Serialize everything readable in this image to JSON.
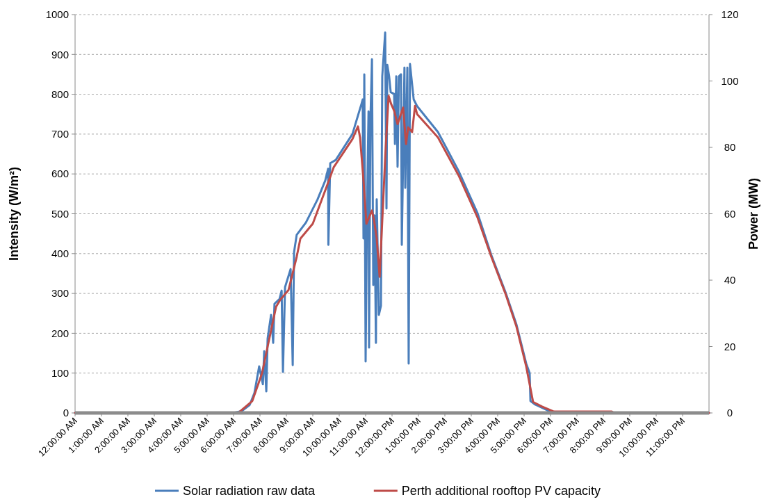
{
  "chart_data": {
    "type": "line",
    "ylabel": "Intensity (W/m²)",
    "y2label": "Power (MW)",
    "xlim": [
      0,
      24
    ],
    "xticks": [
      {
        "value": 0,
        "label": "12:00:00 AM"
      },
      {
        "value": 1,
        "label": "1:00:00 AM"
      },
      {
        "value": 2,
        "label": "2:00:00 AM"
      },
      {
        "value": 3,
        "label": "3:00:00 AM"
      },
      {
        "value": 4,
        "label": "4:00:00 AM"
      },
      {
        "value": 5,
        "label": "5:00:00 AM"
      },
      {
        "value": 6,
        "label": "6:00:00 AM"
      },
      {
        "value": 7,
        "label": "7:00:00 AM"
      },
      {
        "value": 8,
        "label": "8:00:00 AM"
      },
      {
        "value": 9,
        "label": "9:00:00 AM"
      },
      {
        "value": 10,
        "label": "10:00:00 AM"
      },
      {
        "value": 11,
        "label": "11:00:00 AM"
      },
      {
        "value": 12,
        "label": "12:00:00 PM"
      },
      {
        "value": 13,
        "label": "1:00:00 PM"
      },
      {
        "value": 14,
        "label": "2:00:00 PM"
      },
      {
        "value": 15,
        "label": "3:00:00 PM"
      },
      {
        "value": 16,
        "label": "4:00:00 PM"
      },
      {
        "value": 17,
        "label": "5:00:00 PM"
      },
      {
        "value": 18,
        "label": "6:00:00 PM"
      },
      {
        "value": 19,
        "label": "7:00:00 PM"
      },
      {
        "value": 20,
        "label": "8:00:00 PM"
      },
      {
        "value": 21,
        "label": "9:00:00 PM"
      },
      {
        "value": 22,
        "label": "10:00:00 PM"
      },
      {
        "value": 23,
        "label": "11:00:00 PM"
      }
    ],
    "ylim": [
      0,
      1000
    ],
    "yticks": [
      0,
      100,
      200,
      300,
      400,
      500,
      600,
      700,
      800,
      900,
      1000
    ],
    "y2lim": [
      0,
      120
    ],
    "y2ticks": [
      0,
      20,
      40,
      60,
      80,
      100,
      120
    ],
    "grid": "y",
    "legend": "bottom",
    "marker": "none",
    "line_style": "solid",
    "series": [
      {
        "name": "Solar radiation raw data",
        "color": "#4a7ebb",
        "x": [
          0,
          6.0,
          6.32,
          6.61,
          6.79,
          6.97,
          7.11,
          7.16,
          7.24,
          7.29,
          7.42,
          7.5,
          7.55,
          7.74,
          7.82,
          7.87,
          7.95,
          8.16,
          8.24,
          8.29,
          8.39,
          8.74,
          9.18,
          9.47,
          9.58,
          9.59,
          9.66,
          9.87,
          10.5,
          10.84,
          10.89,
          10.92,
          10.95,
          11.0,
          11.05,
          11.11,
          11.13,
          11.18,
          11.24,
          11.29,
          11.34,
          11.39,
          11.42,
          11.5,
          11.58,
          11.63,
          11.74,
          11.79,
          11.82,
          11.89,
          11.95,
          12.08,
          12.11,
          12.16,
          12.21,
          12.26,
          12.34,
          12.37,
          12.47,
          12.5,
          12.58,
          12.63,
          12.68,
          12.82,
          12.95,
          13.74,
          14.53,
          15.24,
          15.76,
          16.29,
          16.71,
          17.08,
          17.21,
          17.24,
          17.42,
          17.87,
          18.13,
          24
        ],
        "values": [
          0,
          0,
          5,
          20,
          50,
          117,
          72,
          155,
          54,
          187,
          246,
          176,
          274,
          286,
          307,
          103,
          316,
          361,
          120,
          403,
          447,
          478,
          536,
          583,
          613,
          422,
          627,
          635,
          700,
          775,
          787,
          438,
          850,
          129,
          496,
          757,
          164,
          728,
          888,
          321,
          496,
          176,
          536,
          246,
          269,
          845,
          955,
          513,
          874,
          845,
          805,
          801,
          675,
          845,
          618,
          845,
          850,
          422,
          867,
          565,
          867,
          124,
          876,
          787,
          770,
          705,
          606,
          501,
          396,
          304,
          222,
          124,
          100,
          30,
          21,
          7,
          0,
          0
        ]
      },
      {
        "name": "Perth additional rooftop PV capacity",
        "color": "#be4b48",
        "axis": "y2",
        "x": [
          0,
          6.18,
          6.71,
          7.08,
          7.29,
          7.61,
          7.76,
          8.08,
          8.39,
          8.53,
          9.0,
          9.61,
          9.79,
          10.5,
          10.71,
          10.79,
          10.92,
          11.03,
          11.24,
          11.32,
          11.42,
          11.53,
          11.63,
          11.76,
          11.87,
          11.97,
          12.08,
          12.21,
          12.42,
          12.53,
          12.61,
          12.76,
          12.87,
          12.95,
          13.74,
          14.53,
          15.24,
          15.76,
          16.29,
          16.71,
          17.08,
          17.34,
          17.68,
          18.13,
          20.32,
          20.4,
          24
        ],
        "values": [
          0,
          0,
          3.6,
          12,
          20,
          32,
          34,
          37,
          47,
          52.5,
          57,
          70,
          74,
          82.5,
          86.3,
          83,
          70,
          57,
          61,
          58,
          52.5,
          41,
          58,
          80,
          95.5,
          93,
          91,
          87,
          92,
          81,
          86,
          84.6,
          92.5,
          90,
          83,
          71.4,
          58.8,
          47,
          36,
          26,
          14,
          3.3,
          1.9,
          0.4,
          0.4,
          0,
          0
        ]
      }
    ]
  }
}
